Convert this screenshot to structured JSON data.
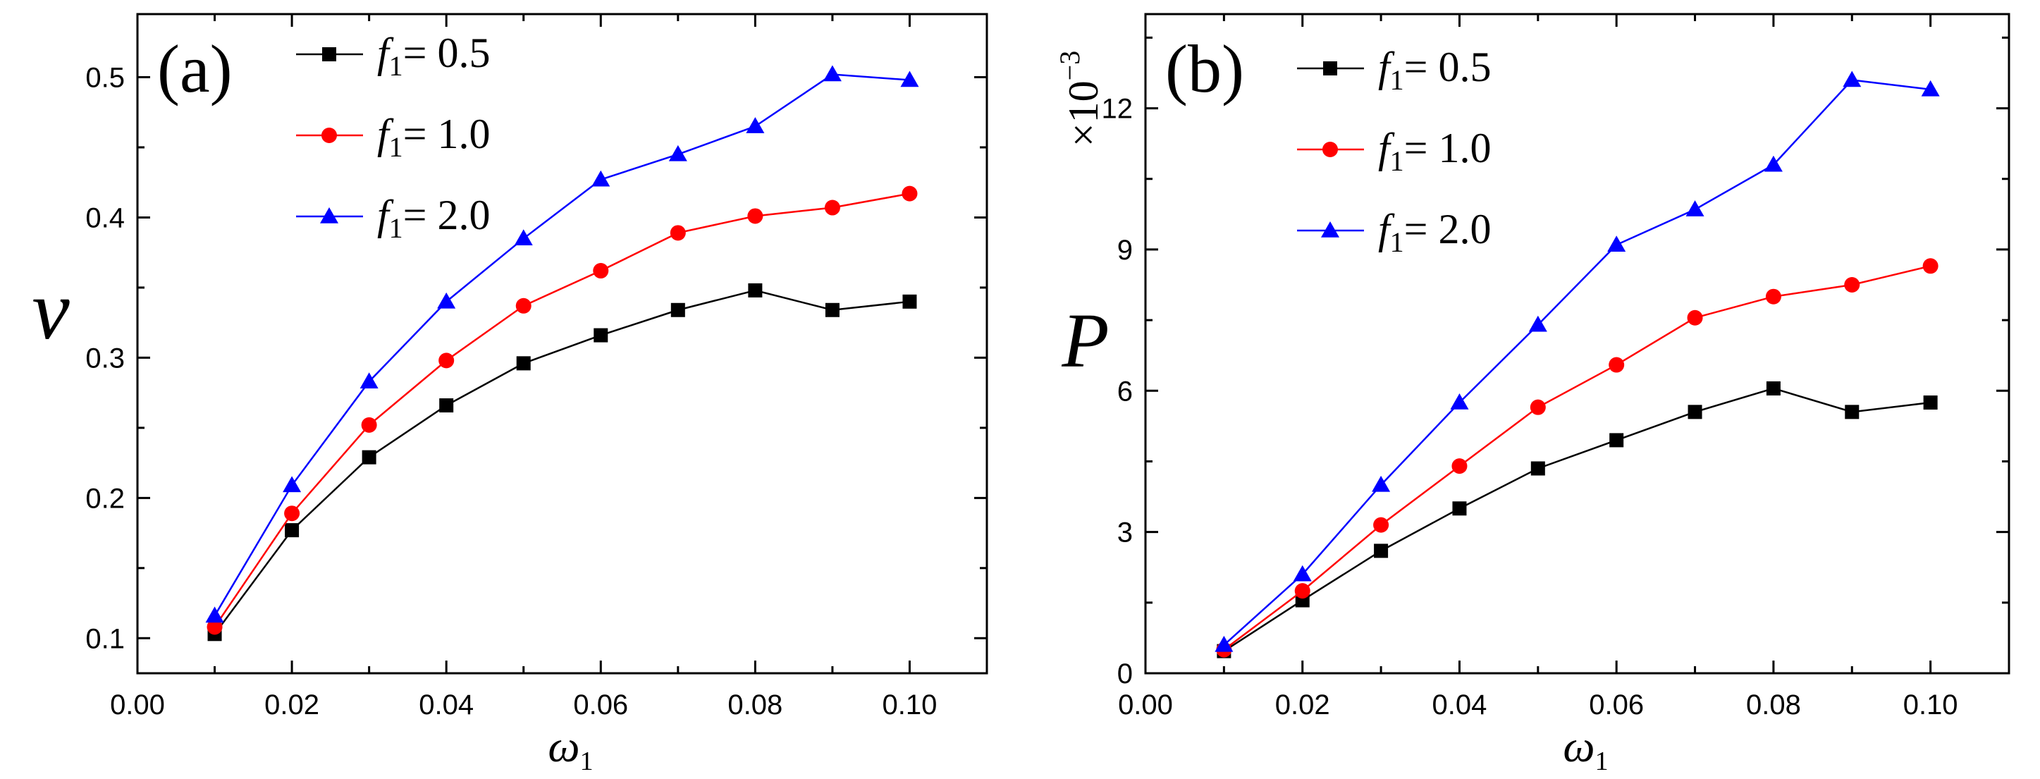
{
  "colors": {
    "series_0.5": "#000000",
    "series_1.0": "#ff0000",
    "series_2.0": "#0000ff",
    "marker_line_1.0": "#ff0000",
    "marker_line_2.0": "#0000ff"
  },
  "chart_data": [
    {
      "type": "line",
      "panel_label": "(a)",
      "xlabel_symbol": "ω",
      "xlabel_sub": "1",
      "ylabel": "v",
      "xlim": [
        0.0,
        0.11
      ],
      "ylim": [
        0.075,
        0.545
      ],
      "x_ticks": [
        0.0,
        0.02,
        0.04,
        0.06,
        0.08,
        0.1
      ],
      "x_tick_labels": [
        "0.00",
        "0.02",
        "0.04",
        "0.06",
        "0.08",
        "0.10"
      ],
      "y_ticks": [
        0.1,
        0.2,
        0.3,
        0.4,
        0.5
      ],
      "y_tick_labels": [
        "0.1",
        "0.2",
        "0.3",
        "0.4",
        "0.5"
      ],
      "y_multiplier": "",
      "legend_position": "top-left",
      "x": [
        0.01,
        0.02,
        0.03,
        0.04,
        0.05,
        0.06,
        0.07,
        0.08,
        0.09,
        0.1
      ],
      "series": [
        {
          "legend_var": "f",
          "legend_sub": "1",
          "legend_rest": "= 0.5",
          "marker": "square",
          "color": "#000000",
          "values": [
            0.103,
            0.177,
            0.229,
            0.266,
            0.296,
            0.316,
            0.334,
            0.348,
            0.334,
            0.34
          ]
        },
        {
          "legend_var": "f",
          "legend_sub": "1",
          "legend_rest": "= 1.0",
          "marker": "circle",
          "color": "#ff0000",
          "values": [
            0.108,
            0.189,
            0.252,
            0.298,
            0.337,
            0.362,
            0.389,
            0.401,
            0.407,
            0.417
          ]
        },
        {
          "legend_var": "f",
          "legend_sub": "1",
          "legend_rest": "= 2.0",
          "marker": "triangle",
          "color": "#0000ff",
          "values": [
            0.116,
            0.209,
            0.283,
            0.34,
            0.385,
            0.427,
            0.445,
            0.465,
            0.502,
            0.498
          ]
        }
      ]
    },
    {
      "type": "line",
      "panel_label": "(b)",
      "xlabel_symbol": "ω",
      "xlabel_sub": "1",
      "ylabel": "P",
      "xlim": [
        0.0,
        0.11
      ],
      "ylim": [
        0.0,
        14.0
      ],
      "x_ticks": [
        0.0,
        0.02,
        0.04,
        0.06,
        0.08,
        0.1
      ],
      "x_tick_labels": [
        "0.00",
        "0.02",
        "0.04",
        "0.06",
        "0.08",
        "0.10"
      ],
      "y_ticks": [
        0,
        3,
        6,
        9,
        12
      ],
      "y_tick_labels": [
        "0",
        "3",
        "6",
        "9",
        "12"
      ],
      "y_multiplier": "×10",
      "y_multiplier_exp": "−3",
      "legend_position": "top-left",
      "x": [
        0.01,
        0.02,
        0.03,
        0.04,
        0.05,
        0.06,
        0.07,
        0.08,
        0.09,
        0.1
      ],
      "series": [
        {
          "legend_var": "f",
          "legend_sub": "1",
          "legend_rest": "= 0.5",
          "marker": "square",
          "color": "#000000",
          "values": [
            0.47,
            1.55,
            2.6,
            3.5,
            4.35,
            4.95,
            5.55,
            6.05,
            5.55,
            5.75
          ]
        },
        {
          "legend_var": "f",
          "legend_sub": "1",
          "legend_rest": "= 1.0",
          "marker": "circle",
          "color": "#ff0000",
          "values": [
            0.5,
            1.75,
            3.15,
            4.4,
            5.65,
            6.55,
            7.55,
            8.0,
            8.25,
            8.65
          ]
        },
        {
          "legend_var": "f",
          "legend_sub": "1",
          "legend_rest": "= 2.0",
          "marker": "triangle",
          "color": "#0000ff",
          "values": [
            0.6,
            2.1,
            4.0,
            5.75,
            7.4,
            9.1,
            9.85,
            10.8,
            12.6,
            12.4
          ]
        }
      ]
    }
  ]
}
